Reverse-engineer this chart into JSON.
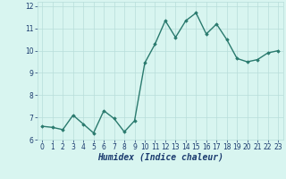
{
  "x": [
    0,
    1,
    2,
    3,
    4,
    5,
    6,
    7,
    8,
    9,
    10,
    11,
    12,
    13,
    14,
    15,
    16,
    17,
    18,
    19,
    20,
    21,
    22,
    23
  ],
  "y": [
    6.6,
    6.55,
    6.45,
    7.1,
    6.7,
    6.3,
    7.3,
    6.95,
    6.35,
    6.85,
    9.45,
    10.3,
    11.35,
    10.6,
    11.35,
    11.7,
    10.75,
    11.2,
    10.5,
    9.65,
    9.5,
    9.6,
    9.9,
    10.0
  ],
  "line_color": "#2a7a6e",
  "marker": "D",
  "marker_size": 1.8,
  "linewidth": 1.0,
  "bg_color": "#d8f5f0",
  "grid_color": "#b8deda",
  "xlabel": "Humidex (Indice chaleur)",
  "xlim": [
    -0.5,
    23.5
  ],
  "ylim": [
    6.0,
    12.2
  ],
  "yticks": [
    6,
    7,
    8,
    9,
    10,
    11,
    12
  ],
  "xticks": [
    0,
    1,
    2,
    3,
    4,
    5,
    6,
    7,
    8,
    9,
    10,
    11,
    12,
    13,
    14,
    15,
    16,
    17,
    18,
    19,
    20,
    21,
    22,
    23
  ],
  "tick_fontsize": 5.5,
  "xlabel_fontsize": 7,
  "label_color": "#1a3a6e"
}
